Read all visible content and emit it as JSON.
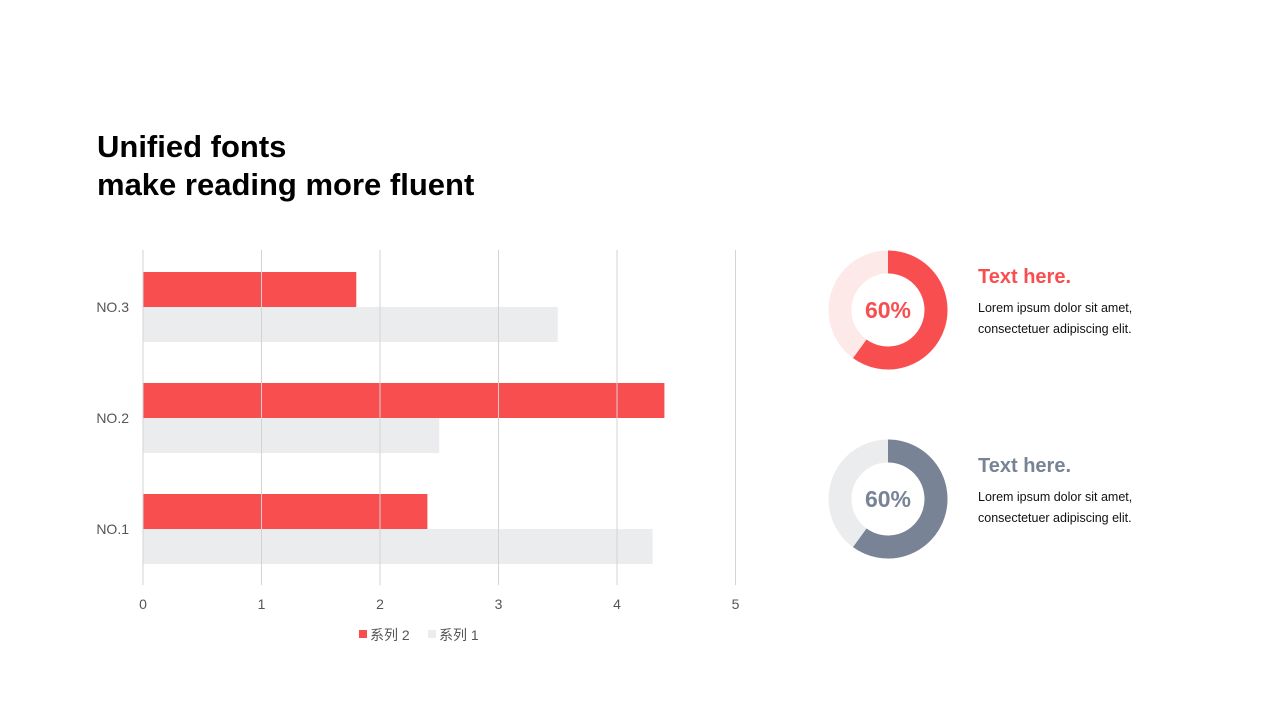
{
  "title": {
    "line1": "Unified fonts",
    "line2": "make reading more fluent"
  },
  "colors": {
    "accent": "#F94E50",
    "accent_light": "#FCE9E8",
    "gray": "#788396",
    "gray_light": "#EBECEE",
    "series1": "#EBECEE",
    "series2": "#F94E50",
    "grid": "#D3D3D3",
    "axis_text": "#555555"
  },
  "chart_data": {
    "type": "bar",
    "orientation": "horizontal",
    "categories": [
      "NO.1",
      "NO.2",
      "NO.3"
    ],
    "series": [
      {
        "name": "系列 1",
        "values": [
          4.3,
          2.5,
          3.5
        ]
      },
      {
        "name": "系列 2",
        "values": [
          2.4,
          4.4,
          1.8
        ]
      }
    ],
    "xlim": [
      0,
      5
    ],
    "xticks": [
      "0",
      "1",
      "2",
      "3",
      "4",
      "5"
    ],
    "grid": true,
    "legend": {
      "position": "bottom",
      "order": [
        "系列 2",
        "系列 1"
      ]
    }
  },
  "donuts": [
    {
      "percent": 60,
      "label": "60%",
      "heading": "Text here.",
      "body_line1": "Lorem ipsum dolor sit amet,",
      "body_line2": "consectetuer adipiscing elit.",
      "theme": "accent"
    },
    {
      "percent": 60,
      "label": "60%",
      "heading": "Text here.",
      "body_line1": "Lorem ipsum dolor sit amet,",
      "body_line2": "consectetuer adipiscing elit.",
      "theme": "gray"
    }
  ]
}
